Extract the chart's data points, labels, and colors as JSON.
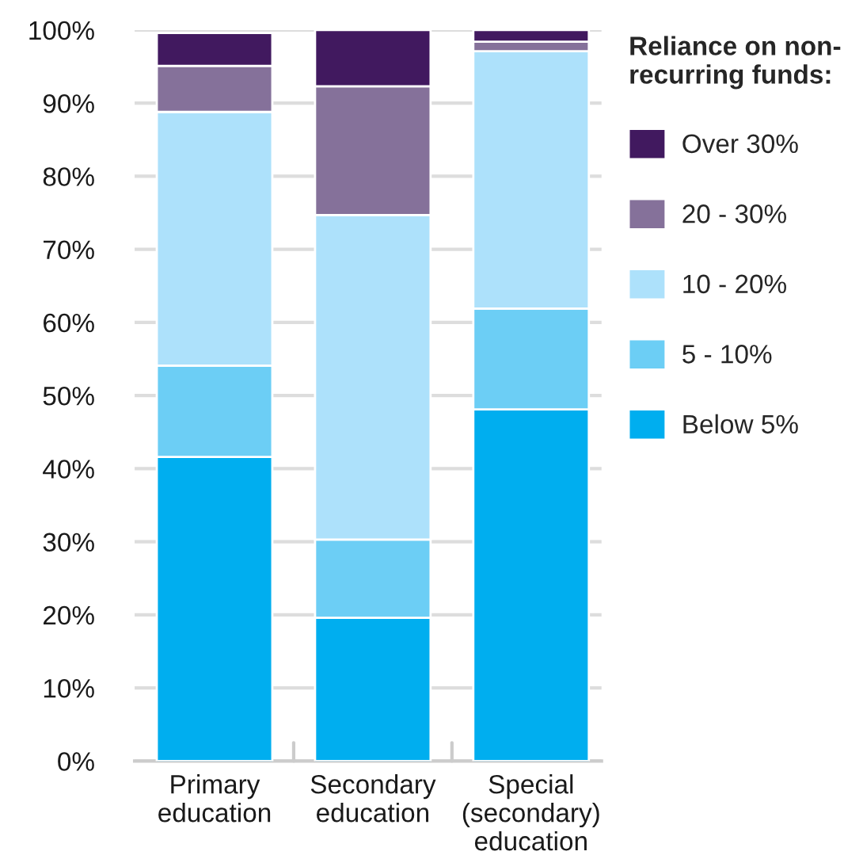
{
  "chart_data": {
    "type": "bar",
    "stacked": true,
    "legend_title": "Reliance on non-\nrecurring funds:",
    "categories": [
      "Primary\neducation",
      "Secondary\neducation",
      "Special\n(secondary)\neducation"
    ],
    "series": [
      {
        "name": "Below 5%",
        "color": "#00aeef",
        "values": [
          41.6,
          19.6,
          48.1
        ]
      },
      {
        "name": "5 - 10%",
        "color": "#6ccef5",
        "values": [
          12.5,
          10.7,
          13.8
        ]
      },
      {
        "name": "10 - 20%",
        "color": "#ade1fb",
        "values": [
          34.7,
          44.4,
          35.2
        ]
      },
      {
        "name": "20 - 30%",
        "color": "#85719a",
        "values": [
          6.3,
          17.6,
          1.3
        ]
      },
      {
        "name": "Over 30%",
        "color": "#41195f",
        "values": [
          4.5,
          7.7,
          1.6
        ]
      }
    ],
    "ylim": [
      0,
      100
    ],
    "yticks": [
      {
        "value": 0,
        "label": "0%"
      },
      {
        "value": 10,
        "label": "10%"
      },
      {
        "value": 20,
        "label": "20%"
      },
      {
        "value": 30,
        "label": "30%"
      },
      {
        "value": 40,
        "label": "40%"
      },
      {
        "value": 50,
        "label": "50%"
      },
      {
        "value": 60,
        "label": "60%"
      },
      {
        "value": 70,
        "label": "70%"
      },
      {
        "value": 80,
        "label": "80%"
      },
      {
        "value": 90,
        "label": "90%"
      },
      {
        "value": 100,
        "label": "100%"
      }
    ],
    "grid": "y",
    "legend": "right"
  }
}
